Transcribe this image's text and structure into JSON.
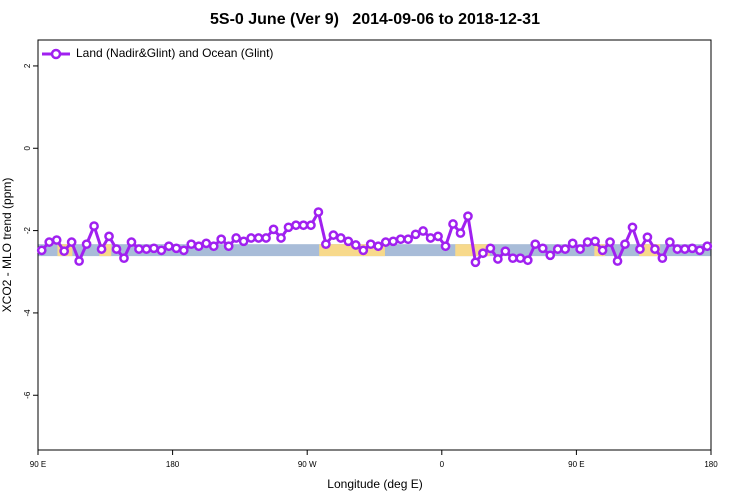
{
  "chart_data": {
    "type": "line",
    "title": "5S-0 June (Ver 9)   2014-09-06 to 2018-12-31",
    "x_label": "Longitude (deg E)",
    "y_label": "XCO2 - MLO trend (ppm)",
    "xlim": [
      90,
      540
    ],
    "ylim": [
      -7.33,
      2.63
    ],
    "xticks": [
      {
        "value": 90,
        "label": "90 E"
      },
      {
        "value": 180,
        "label": "180"
      },
      {
        "value": 270,
        "label": "90 W"
      },
      {
        "value": 360,
        "label": "0"
      },
      {
        "value": 450,
        "label": "90 E"
      },
      {
        "value": 540,
        "label": "180"
      }
    ],
    "yticks": [
      2,
      0,
      -2,
      -4,
      -6
    ],
    "legend": "top-left",
    "background_band": {
      "ylim": [
        -2.62,
        -2.33
      ],
      "color": "#a8bcd8"
    },
    "highlight_regions": {
      "color": "#f7d98b",
      "ranges": [
        [
          103,
          113
        ],
        [
          131,
          139
        ],
        [
          278,
          322
        ],
        [
          369,
          392
        ],
        [
          462,
          469
        ],
        [
          492,
          506
        ]
      ]
    },
    "series": [
      {
        "name": "Land (Nadir&Glint) and Ocean (Glint)",
        "color": "#a020f0",
        "x": [
          92.5,
          97.5,
          102.5,
          107.5,
          112.5,
          117.5,
          122.5,
          127.5,
          132.5,
          137.5,
          142.5,
          147.5,
          152.5,
          157.5,
          162.5,
          167.5,
          172.5,
          177.5,
          182.5,
          187.5,
          192.5,
          197.5,
          202.5,
          207.5,
          212.5,
          217.5,
          222.5,
          227.5,
          232.5,
          237.5,
          242.5,
          247.5,
          252.5,
          257.5,
          262.5,
          267.5,
          272.5,
          277.5,
          282.5,
          287.5,
          292.5,
          297.5,
          302.5,
          307.5,
          312.5,
          317.5,
          322.5,
          327.5,
          332.5,
          337.5,
          342.5,
          347.5,
          352.5,
          357.5,
          362.5,
          367.5,
          372.5,
          377.5,
          382.5,
          387.5,
          392.5,
          397.5,
          402.5,
          407.5,
          412.5,
          417.5,
          422.5,
          427.5,
          432.5,
          437.5,
          442.5,
          447.5,
          452.5,
          457.5,
          462.5,
          467.5,
          472.5,
          477.5,
          482.5,
          487.5,
          492.5,
          497.5,
          502.5,
          507.5,
          512.5,
          517.5,
          522.5,
          527.5,
          532.5,
          537.5
        ],
        "values": [
          -2.48,
          -2.28,
          -2.23,
          -2.5,
          -2.28,
          -2.74,
          -2.33,
          -1.89,
          -2.45,
          -2.14,
          -2.45,
          -2.67,
          -2.28,
          -2.45,
          -2.45,
          -2.43,
          -2.48,
          -2.38,
          -2.43,
          -2.48,
          -2.33,
          -2.38,
          -2.31,
          -2.38,
          -2.21,
          -2.38,
          -2.18,
          -2.26,
          -2.18,
          -2.18,
          -2.18,
          -1.97,
          -2.18,
          -1.92,
          -1.87,
          -1.87,
          -1.87,
          -1.55,
          -2.33,
          -2.11,
          -2.18,
          -2.26,
          -2.35,
          -2.48,
          -2.33,
          -2.38,
          -2.28,
          -2.26,
          -2.21,
          -2.21,
          -2.09,
          -2.01,
          -2.18,
          -2.14,
          -2.38,
          -1.84,
          -2.06,
          -1.65,
          -2.77,
          -2.55,
          -2.43,
          -2.69,
          -2.5,
          -2.67,
          -2.67,
          -2.72,
          -2.33,
          -2.43,
          -2.6,
          -2.45,
          -2.45,
          -2.31,
          -2.45,
          -2.28,
          -2.26,
          -2.48,
          -2.28,
          -2.74,
          -2.33,
          -1.92,
          -2.45,
          -2.16,
          -2.45,
          -2.67,
          -2.28,
          -2.45,
          -2.45,
          -2.43,
          -2.48,
          -2.38
        ]
      }
    ]
  }
}
